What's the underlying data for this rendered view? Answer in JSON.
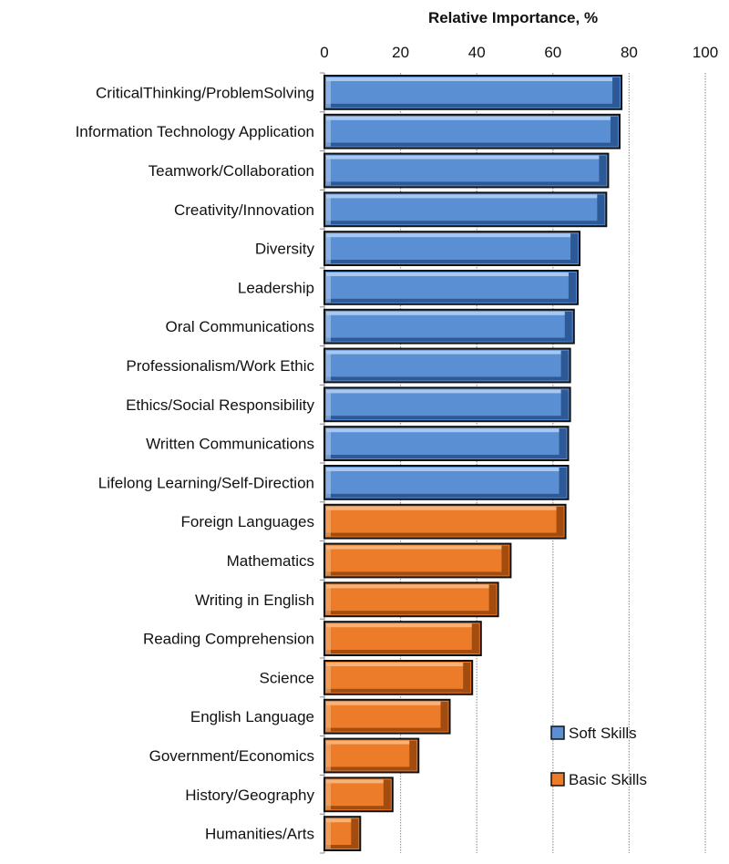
{
  "chart_data": {
    "type": "bar",
    "orientation": "horizontal",
    "title": "Relative Importance, %",
    "xlabel": "Relative Importance, %",
    "ylabel": "",
    "xlim": [
      0,
      100
    ],
    "xticks": [
      "0",
      "20",
      "40",
      "60",
      "80",
      "100"
    ],
    "grid": true,
    "legend_position": "bottom-right",
    "categories": [
      "CriticalThinking/ProblemSolving",
      "Information Technology Application",
      "Teamwork/Collaboration",
      "Creativity/Innovation",
      "Diversity",
      "Leadership",
      "Oral Communications",
      "Professionalism/Work Ethic",
      "Ethics/Social Responsibility",
      "Written Communications",
      "Lifelong Learning/Self-Direction",
      "Foreign Languages",
      "Mathematics",
      "Writing in English",
      "Reading Comprehension",
      "Science",
      "English Language",
      "Government/Economics",
      "History/Geography",
      "Humanities/Arts"
    ],
    "values": [
      78,
      77.5,
      74.5,
      74,
      67,
      66.5,
      65.5,
      64.5,
      64.5,
      64,
      64,
      63.3,
      48.9,
      45.6,
      41.1,
      38.8,
      32.9,
      24.7,
      17.9,
      9.4
    ],
    "groups": [
      "soft",
      "soft",
      "soft",
      "soft",
      "soft",
      "soft",
      "soft",
      "soft",
      "soft",
      "soft",
      "soft",
      "basic",
      "basic",
      "basic",
      "basic",
      "basic",
      "basic",
      "basic",
      "basic",
      "basic"
    ],
    "series": [
      {
        "key": "soft",
        "name": "Soft Skills",
        "color": "#5b8fd4"
      },
      {
        "key": "basic",
        "name": "Basic Skills",
        "color": "#ec7c2a"
      }
    ]
  }
}
